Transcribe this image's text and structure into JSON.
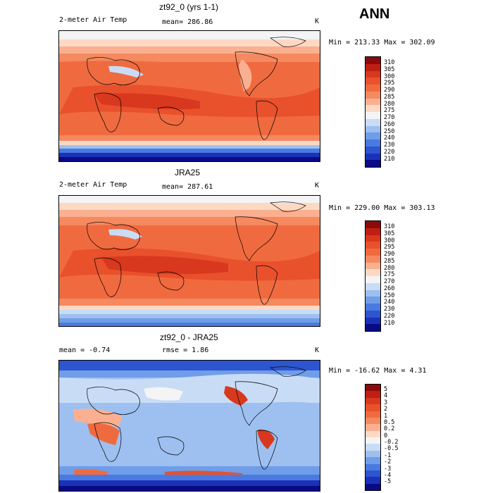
{
  "season": "ANN",
  "panels": [
    {
      "id": "model",
      "title": "zt92_0 (yrs 1-1)",
      "variable": "2-meter Air Temp",
      "left_stat": "",
      "mean_text": "mean= 286.86",
      "units": "K",
      "minmax": "Min = 213.33 Max = 302.09"
    },
    {
      "id": "obs",
      "title": "JRA25",
      "variable": "2-meter Air Temp",
      "left_stat": "",
      "mean_text": "mean= 287.61",
      "units": "K",
      "minmax": "Min = 229.00 Max = 303.13"
    },
    {
      "id": "diff",
      "title": "zt92_0 - JRA25",
      "variable": "",
      "left_stat": "mean =   -0.74",
      "mean_text": "rmse =    1.86",
      "units": "K",
      "minmax": "Min = -16.62 Max =    4.31"
    }
  ],
  "colorbars": {
    "temperature": {
      "labels": [
        "310",
        "305",
        "300",
        "295",
        "290",
        "285",
        "280",
        "275",
        "270",
        "260",
        "250",
        "240",
        "230",
        "220",
        "210"
      ],
      "colors": [
        "#8c0a0a",
        "#c01e12",
        "#d8381e",
        "#e8512c",
        "#f06a40",
        "#f5895f",
        "#fab090",
        "#fdd9c4",
        "#f4f4f4",
        "#c9dcf6",
        "#9ec0f0",
        "#6f9de8",
        "#4a7ae0",
        "#2d55d0",
        "#1a32b8",
        "#0a0a84"
      ]
    },
    "difference": {
      "labels": [
        "5",
        "4",
        "3",
        "2",
        "1",
        "0.5",
        "0.2",
        "0",
        "-0.2",
        "-0.5",
        "-1",
        "-2",
        "-3",
        "-4",
        "-5"
      ],
      "colors": [
        "#8c0a0a",
        "#c01e12",
        "#d8381e",
        "#e8512c",
        "#f06a40",
        "#f5895f",
        "#fab090",
        "#fdd9c4",
        "#f4f4f4",
        "#c9dcf6",
        "#9ec0f0",
        "#6f9de8",
        "#4a7ae0",
        "#2d55d0",
        "#1a32b8",
        "#0a0a84"
      ]
    }
  }
}
